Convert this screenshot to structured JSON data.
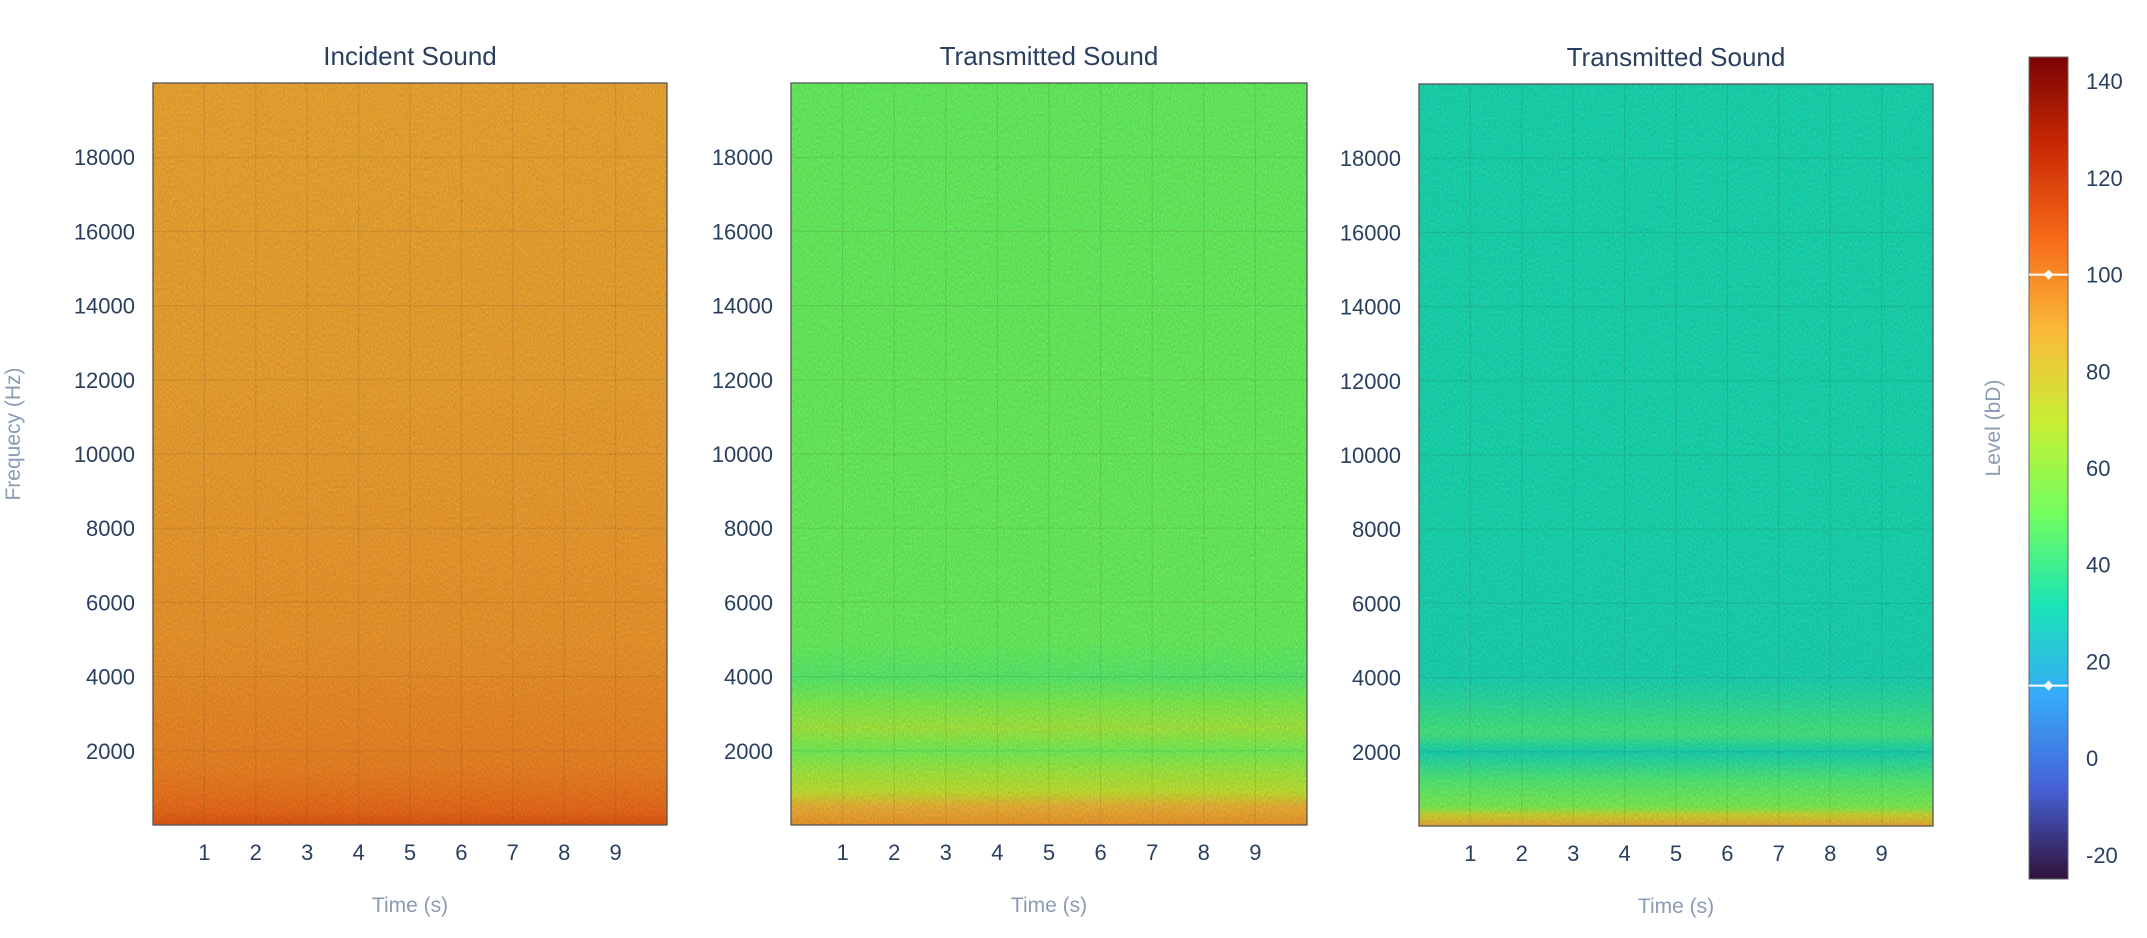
{
  "chart_data": [
    {
      "type": "heatmap",
      "title": "Incident Sound",
      "xlabel": "Time (s)",
      "ylabel": "Frequecy (Hz)",
      "xlim": [
        0,
        10
      ],
      "ylim": [
        0,
        20000
      ],
      "x_ticks": [
        1,
        2,
        3,
        4,
        5,
        6,
        7,
        8,
        9
      ],
      "y_ticks": [
        2000,
        4000,
        6000,
        8000,
        10000,
        12000,
        14000,
        16000,
        18000
      ],
      "level_profile": [
        {
          "freq": 0,
          "level": 112
        },
        {
          "freq": 400,
          "level": 106
        },
        {
          "freq": 1500,
          "level": 100
        },
        {
          "freq": 5000,
          "level": 95
        },
        {
          "freq": 12000,
          "level": 92
        },
        {
          "freq": 20000,
          "level": 91
        }
      ]
    },
    {
      "type": "heatmap",
      "title": "Transmitted Sound",
      "xlabel": "Time (s)",
      "ylabel": "",
      "xlim": [
        0,
        10
      ],
      "ylim": [
        0,
        20000
      ],
      "x_ticks": [
        1,
        2,
        3,
        4,
        5,
        6,
        7,
        8,
        9
      ],
      "y_ticks": [
        2000,
        4000,
        6000,
        8000,
        10000,
        12000,
        14000,
        16000,
        18000
      ],
      "level_profile": [
        {
          "freq": 0,
          "level": 95
        },
        {
          "freq": 500,
          "level": 88
        },
        {
          "freq": 900,
          "level": 70
        },
        {
          "freq": 1400,
          "level": 63
        },
        {
          "freq": 2000,
          "level": 52
        },
        {
          "freq": 2600,
          "level": 63
        },
        {
          "freq": 3300,
          "level": 55
        },
        {
          "freq": 4000,
          "level": 46
        },
        {
          "freq": 5000,
          "level": 50
        },
        {
          "freq": 10000,
          "level": 50
        },
        {
          "freq": 20000,
          "level": 49
        }
      ]
    },
    {
      "type": "heatmap",
      "title": "Transmitted Sound",
      "xlabel": "Time (s)",
      "ylabel": "",
      "xlim": [
        0,
        10
      ],
      "ylim": [
        0,
        20000
      ],
      "x_ticks": [
        1,
        2,
        3,
        4,
        5,
        6,
        7,
        8,
        9
      ],
      "y_ticks": [
        2000,
        4000,
        6000,
        8000,
        10000,
        12000,
        14000,
        16000,
        18000
      ],
      "level_profile": [
        {
          "freq": 0,
          "level": 90
        },
        {
          "freq": 300,
          "level": 75
        },
        {
          "freq": 500,
          "level": 55
        },
        {
          "freq": 1200,
          "level": 45
        },
        {
          "freq": 2000,
          "level": 30
        },
        {
          "freq": 2500,
          "level": 42
        },
        {
          "freq": 4000,
          "level": 30
        },
        {
          "freq": 8000,
          "level": 31
        },
        {
          "freq": 20000,
          "level": 31
        }
      ]
    }
  ],
  "colorbar": {
    "title": "Level (bD)",
    "range": [
      -25,
      145
    ],
    "ticks": [
      -20,
      0,
      20,
      40,
      60,
      80,
      100,
      120,
      140
    ],
    "markers": [
      100,
      15
    ]
  },
  "colors": {
    "turbo_stops": [
      "#30123b",
      "#4662d7",
      "#36aaf9",
      "#1ae4b6",
      "#72fe5e",
      "#c8ef34",
      "#faba39",
      "#f66b19",
      "#cb2a04",
      "#7a0403"
    ],
    "tick_text": "#2a3f5f",
    "axis_title": "#8a9bb3"
  }
}
